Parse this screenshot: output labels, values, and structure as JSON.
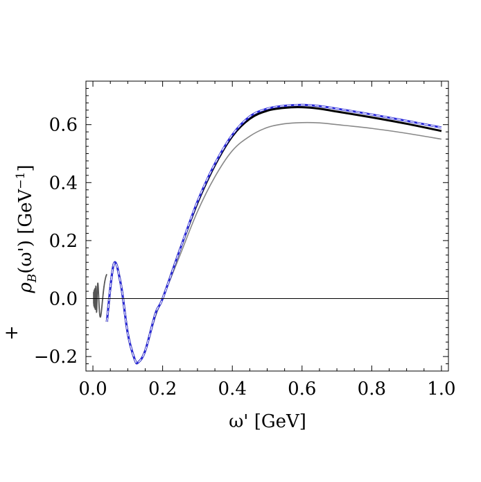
{
  "chart_data": {
    "type": "line",
    "title": "",
    "xlabel": "ω' [GeV]",
    "ylabel": "ρ_B^+(ω') [GeV^-1]",
    "ylabel_parts": {
      "main": "ρ",
      "sup": "+",
      "sub": "B",
      "arg": "(ω') [GeV",
      "exp": "−1",
      "close": "]"
    },
    "xlim": [
      -0.02,
      1.02
    ],
    "ylim": [
      -0.25,
      0.75
    ],
    "xticks": [
      "0.0",
      "0.2",
      "0.4",
      "0.6",
      "0.8",
      "1.0"
    ],
    "xtick_values": [
      0.0,
      0.2,
      0.4,
      0.6,
      0.8,
      1.0
    ],
    "yticks": [
      "−0.2",
      "0.0",
      "0.2",
      "0.4",
      "0.6"
    ],
    "ytick_values": [
      -0.2,
      0.0,
      0.2,
      0.4,
      0.6
    ],
    "zero_line": 0.0,
    "series": [
      {
        "name": "gray-thin",
        "color": "#888888",
        "style": "solid",
        "x": [
          0.04,
          0.06,
          0.08,
          0.1,
          0.12,
          0.13,
          0.15,
          0.18,
          0.2,
          0.25,
          0.3,
          0.35,
          0.4,
          0.45,
          0.5,
          0.55,
          0.6,
          0.65,
          0.7,
          0.8,
          0.9,
          1.0
        ],
        "y": [
          -0.08,
          0.12,
          0.05,
          -0.12,
          -0.21,
          -0.22,
          -0.18,
          -0.06,
          0.0,
          0.15,
          0.3,
          0.42,
          0.51,
          0.56,
          0.59,
          0.603,
          0.607,
          0.606,
          0.6,
          0.587,
          0.57,
          0.55
        ]
      },
      {
        "name": "black-thick",
        "color": "#000000",
        "style": "solid",
        "x": [
          0.04,
          0.06,
          0.08,
          0.1,
          0.12,
          0.13,
          0.15,
          0.18,
          0.2,
          0.25,
          0.3,
          0.35,
          0.4,
          0.45,
          0.5,
          0.55,
          0.6,
          0.65,
          0.7,
          0.8,
          0.9,
          1.0
        ],
        "y": [
          -0.08,
          0.12,
          0.05,
          -0.12,
          -0.21,
          -0.22,
          -0.18,
          -0.05,
          0.0,
          0.17,
          0.33,
          0.46,
          0.56,
          0.62,
          0.648,
          0.658,
          0.66,
          0.655,
          0.645,
          0.625,
          0.603,
          0.578
        ]
      },
      {
        "name": "blue",
        "color": "#2a2ad8",
        "style": "solid",
        "x": [
          0.04,
          0.06,
          0.08,
          0.1,
          0.12,
          0.13,
          0.15,
          0.18,
          0.2,
          0.25,
          0.3,
          0.35,
          0.4,
          0.45,
          0.5,
          0.55,
          0.6,
          0.65,
          0.7,
          0.8,
          0.9,
          1.0
        ],
        "y": [
          -0.08,
          0.12,
          0.05,
          -0.12,
          -0.21,
          -0.22,
          -0.18,
          -0.05,
          0.0,
          0.17,
          0.335,
          0.465,
          0.565,
          0.628,
          0.655,
          0.665,
          0.668,
          0.664,
          0.655,
          0.635,
          0.613,
          0.59
        ]
      },
      {
        "name": "white-dashed",
        "color": "#ffffff",
        "style": "dashed",
        "x": [
          0.04,
          0.06,
          0.08,
          0.1,
          0.12,
          0.13,
          0.15,
          0.18,
          0.2,
          0.25,
          0.3,
          0.35,
          0.4,
          0.45,
          0.5,
          0.55,
          0.6,
          0.65,
          0.7,
          0.8,
          0.9,
          1.0
        ],
        "y": [
          -0.08,
          0.12,
          0.05,
          -0.12,
          -0.21,
          -0.22,
          -0.18,
          -0.05,
          0.0,
          0.17,
          0.335,
          0.465,
          0.565,
          0.628,
          0.655,
          0.665,
          0.668,
          0.664,
          0.655,
          0.635,
          0.613,
          0.59
        ]
      }
    ],
    "oscillation_region": {
      "x_start": 0.002,
      "x_end": 0.04,
      "color": "#555555"
    }
  }
}
